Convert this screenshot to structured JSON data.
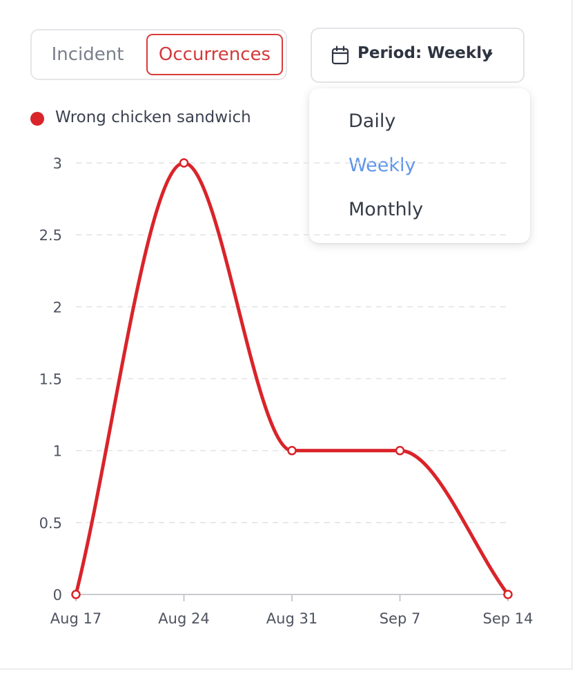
{
  "toggle": {
    "incident_label": "Incident",
    "occurrences_label": "Occurrences",
    "active": "Occurrences"
  },
  "period": {
    "icon": "calendar-icon",
    "label": "Period: Weekly",
    "chevron_icon": "chevron-down-icon",
    "options": [
      "Daily",
      "Weekly",
      "Monthly"
    ],
    "selected": "Weekly"
  },
  "colors": {
    "accent": "#d9242a",
    "selected_option": "#5f95e8"
  },
  "chart_data": {
    "type": "line",
    "title": "",
    "xlabel": "",
    "ylabel": "",
    "categories": [
      "Aug 17",
      "Aug 24",
      "Aug 31",
      "Sep 7",
      "Sep 14"
    ],
    "series": [
      {
        "name": "Wrong chicken sandwich",
        "values": [
          0,
          3,
          1,
          1,
          0
        ],
        "color": "#d9242a"
      }
    ],
    "y_ticks": [
      "0",
      "0.5",
      "1",
      "1.5",
      "2",
      "2.5",
      "3"
    ],
    "ylim": [
      0,
      3
    ],
    "grid": true,
    "legend_position": "top-left"
  }
}
